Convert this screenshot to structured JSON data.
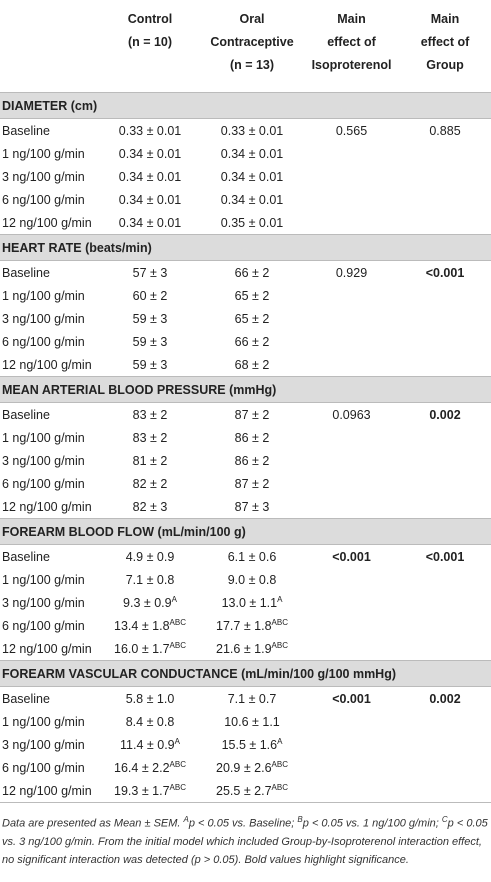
{
  "header": {
    "columns": [
      {
        "line1": "Control",
        "line2": "(n = 10)"
      },
      {
        "line1": "Oral",
        "line2": "Contraceptive",
        "line3": "(n = 13)"
      },
      {
        "line1": "Main",
        "line2": "effect of",
        "line3": "Isoproterenol"
      },
      {
        "line1": "Main",
        "line2": "effect of",
        "line3": "Group"
      }
    ]
  },
  "sections": [
    {
      "title": "DIAMETER (cm)",
      "rows": [
        {
          "label": "Baseline",
          "control": "0.33 ± 0.01",
          "oc": "0.33 ± 0.01",
          "iso": {
            "text": "0.565",
            "bold": false
          },
          "group": {
            "text": "0.885",
            "bold": false
          }
        },
        {
          "label": "1 ng/100 g/min",
          "control": "0.34 ± 0.01",
          "oc": "0.34 ± 0.01"
        },
        {
          "label": "3 ng/100 g/min",
          "control": "0.34 ± 0.01",
          "oc": "0.34 ± 0.01"
        },
        {
          "label": "6 ng/100 g/min",
          "control": "0.34 ± 0.01",
          "oc": "0.34 ± 0.01"
        },
        {
          "label": "12 ng/100 g/min",
          "control": "0.34 ± 0.01",
          "oc": "0.35 ± 0.01"
        }
      ]
    },
    {
      "title": "HEART RATE (beats/min)",
      "rows": [
        {
          "label": "Baseline",
          "control": "57 ± 3",
          "oc": "66 ± 2",
          "iso": {
            "text": "0.929",
            "bold": false
          },
          "group": {
            "text": "<0.001",
            "bold": true
          }
        },
        {
          "label": "1 ng/100 g/min",
          "control": "60 ± 2",
          "oc": "65 ± 2"
        },
        {
          "label": "3 ng/100 g/min",
          "control": "59 ± 3",
          "oc": "65 ± 2"
        },
        {
          "label": "6 ng/100 g/min",
          "control": "59 ± 3",
          "oc": "66 ± 2"
        },
        {
          "label": "12 ng/100 g/min",
          "control": "59 ± 3",
          "oc": "68 ± 2"
        }
      ]
    },
    {
      "title": "MEAN ARTERIAL BLOOD PRESSURE (mmHg)",
      "rows": [
        {
          "label": "Baseline",
          "control": "83 ± 2",
          "oc": "87 ± 2",
          "iso": {
            "text": "0.0963",
            "bold": false
          },
          "group": {
            "text": "0.002",
            "bold": true
          }
        },
        {
          "label": "1 ng/100 g/min",
          "control": "83 ± 2",
          "oc": "86 ± 2"
        },
        {
          "label": "3 ng/100 g/min",
          "control": "81 ± 2",
          "oc": "86 ± 2"
        },
        {
          "label": "6 ng/100 g/min",
          "control": "82 ± 2",
          "oc": "87 ± 2"
        },
        {
          "label": "12 ng/100 g/min",
          "control": "82 ± 3",
          "oc": "87 ± 3"
        }
      ]
    },
    {
      "title": "FOREARM BLOOD FLOW (mL/min/100 g)",
      "rows": [
        {
          "label": "Baseline",
          "control": "4.9 ± 0.9",
          "oc": "6.1 ± 0.6",
          "iso": {
            "text": "<0.001",
            "bold": true
          },
          "group": {
            "text": "<0.001",
            "bold": true
          }
        },
        {
          "label": "1 ng/100 g/min",
          "control": "7.1 ± 0.8",
          "oc": "9.0 ± 0.8"
        },
        {
          "label": "3 ng/100 g/min",
          "control": {
            "text": "9.3 ± 0.9",
            "sup": "A"
          },
          "oc": {
            "text": "13.0 ± 1.1",
            "sup": "A"
          }
        },
        {
          "label": "6 ng/100 g/min",
          "control": {
            "text": "13.4 ± 1.8",
            "sup": "ABC"
          },
          "oc": {
            "text": "17.7 ± 1.8",
            "sup": "ABC"
          }
        },
        {
          "label": "12 ng/100 g/min",
          "control": {
            "text": "16.0 ± 1.7",
            "sup": "ABC"
          },
          "oc": {
            "text": "21.6 ± 1.9",
            "sup": "ABC"
          }
        }
      ]
    },
    {
      "title": "FOREARM VASCULAR CONDUCTANCE (mL/min/100 g/100 mmHg)",
      "rows": [
        {
          "label": "Baseline",
          "control": "5.8 ± 1.0",
          "oc": "7.1 ± 0.7",
          "iso": {
            "text": "<0.001",
            "bold": true
          },
          "group": {
            "text": "0.002",
            "bold": true
          }
        },
        {
          "label": "1 ng/100 g/min",
          "control": "8.4 ± 0.8",
          "oc": "10.6 ± 1.1"
        },
        {
          "label": "3 ng/100 g/min",
          "control": {
            "text": "11.4 ± 0.9",
            "sup": "A"
          },
          "oc": {
            "text": "15.5 ± 1.6",
            "sup": "A"
          }
        },
        {
          "label": "6 ng/100 g/min",
          "control": {
            "text": "16.4 ± 2.2",
            "sup": "ABC"
          },
          "oc": {
            "text": "20.9 ± 2.6",
            "sup": "ABC"
          }
        },
        {
          "label": "12 ng/100 g/min",
          "control": {
            "text": "19.3 ± 1.7",
            "sup": "ABC"
          },
          "oc": {
            "text": "25.5 ± 2.7",
            "sup": "ABC"
          }
        }
      ]
    }
  ],
  "footnote": [
    {
      "text": "Data are presented as Mean ± SEM. "
    },
    {
      "text": "A",
      "sup": true
    },
    {
      "text": "p < 0.05 vs. Baseline; "
    },
    {
      "text": "B",
      "sup": true
    },
    {
      "text": "p < 0.05 vs. 1 ng/100 g/min; "
    },
    {
      "text": "C",
      "sup": true
    },
    {
      "text": "p < 0.05 vs. 3 ng/100 g/min. From the initial model which included Group-by-Isoproterenol interaction effect, no significant interaction was detected (p > 0.05). Bold values highlight significance."
    }
  ]
}
